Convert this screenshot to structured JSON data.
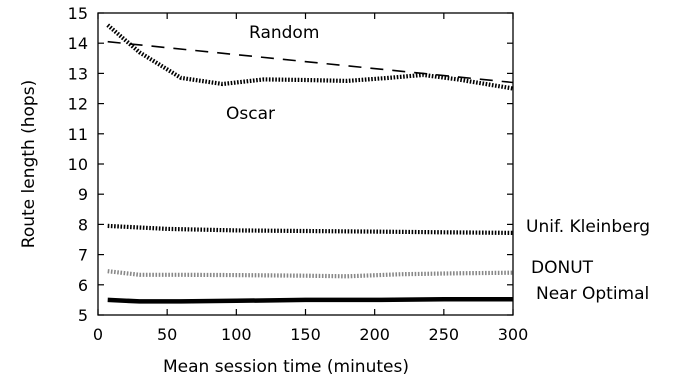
{
  "chart_data": {
    "type": "line",
    "title": "",
    "xlabel": "Mean session time (minutes)",
    "ylabel": "Route length (hops)",
    "xlim": [
      0,
      300
    ],
    "ylim": [
      5,
      15
    ],
    "xticks": [
      "0",
      "50",
      "100",
      "150",
      "200",
      "250",
      "300"
    ],
    "yticks": [
      "5",
      "6",
      "7",
      "8",
      "9",
      "10",
      "11",
      "12",
      "13",
      "14",
      "15"
    ],
    "grid": false,
    "legend": "none",
    "series": [
      {
        "name": "Random",
        "style": "dashed",
        "color": "#000000",
        "x": [
          7,
          300
        ],
        "y": [
          14.05,
          12.7
        ]
      },
      {
        "name": "Oscar",
        "style": "dotted-thick",
        "color": "#000000",
        "x": [
          7,
          30,
          60,
          90,
          120,
          150,
          180,
          210,
          235,
          260,
          300
        ],
        "y": [
          14.6,
          13.7,
          12.85,
          12.65,
          12.8,
          12.78,
          12.75,
          12.85,
          12.95,
          12.8,
          12.5
        ]
      },
      {
        "name": "Unif. Kleinberg",
        "style": "dotted-thick",
        "color": "#000000",
        "x": [
          7,
          50,
          100,
          150,
          200,
          250,
          300
        ],
        "y": [
          7.95,
          7.85,
          7.8,
          7.78,
          7.76,
          7.74,
          7.72
        ]
      },
      {
        "name": "DONUT",
        "style": "dotted-gray",
        "color": "#888888",
        "x": [
          7,
          30,
          60,
          100,
          150,
          180,
          220,
          260,
          300
        ],
        "y": [
          6.45,
          6.33,
          6.33,
          6.32,
          6.3,
          6.28,
          6.35,
          6.38,
          6.4
        ]
      },
      {
        "name": "Near Optimal",
        "style": "solid-thick",
        "color": "#000000",
        "x": [
          7,
          30,
          60,
          100,
          150,
          200,
          250,
          300
        ],
        "y": [
          5.5,
          5.45,
          5.45,
          5.47,
          5.5,
          5.5,
          5.52,
          5.52
        ]
      }
    ],
    "annotations": [
      {
        "text": "Random",
        "series": "Random"
      },
      {
        "text": "Oscar",
        "series": "Oscar"
      },
      {
        "text": "Unif. Kleinberg",
        "series": "Unif. Kleinberg"
      },
      {
        "text": "DONUT",
        "series": "DONUT"
      },
      {
        "text": "Near Optimal",
        "series": "Near Optimal"
      }
    ]
  }
}
